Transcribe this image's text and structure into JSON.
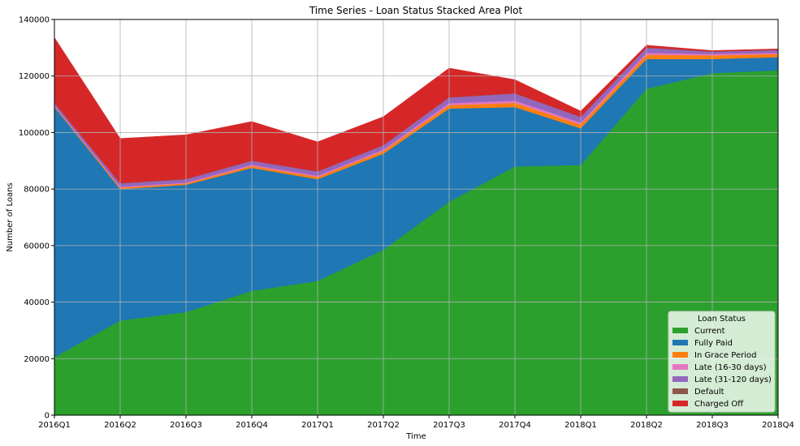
{
  "chart_data": {
    "type": "area",
    "stacked": true,
    "title": "Time Series - Loan Status Stacked Area Plot",
    "xlabel": "Time",
    "ylabel": "Number of Loans",
    "ylim": [
      0,
      140000
    ],
    "yticks": [
      0,
      20000,
      40000,
      60000,
      80000,
      100000,
      120000,
      140000
    ],
    "grid": true,
    "categories": [
      "2016Q1",
      "2016Q2",
      "2016Q3",
      "2016Q4",
      "2017Q1",
      "2017Q2",
      "2017Q3",
      "2017Q4",
      "2018Q1",
      "2018Q2",
      "2018Q3",
      "2018Q4"
    ],
    "legend": {
      "title": "Loan Status",
      "position": "bottom-right"
    },
    "series": [
      {
        "name": "Current",
        "color": "#2ca02c",
        "values": [
          20500,
          33500,
          36500,
          44000,
          47500,
          58500,
          75500,
          88000,
          88500,
          115500,
          121000,
          122000
        ]
      },
      {
        "name": "Fully Paid",
        "color": "#1f77b4",
        "values": [
          88500,
          46500,
          45000,
          43500,
          36000,
          34000,
          33000,
          21000,
          13000,
          10500,
          5000,
          4700
        ]
      },
      {
        "name": "In Grace Period",
        "color": "#ff7f0e",
        "values": [
          300,
          500,
          500,
          700,
          800,
          1000,
          1200,
          1500,
          1300,
          1500,
          1300,
          1100
        ]
      },
      {
        "name": "Late (16-30 days)",
        "color": "#e377c2",
        "values": [
          200,
          300,
          300,
          400,
          400,
          500,
          700,
          800,
          700,
          700,
          500,
          400
        ]
      },
      {
        "name": "Late (31-120 days)",
        "color": "#9467bd",
        "values": [
          1000,
          1200,
          1200,
          1400,
          1500,
          1500,
          2000,
          2500,
          2000,
          1800,
          800,
          1000
        ]
      },
      {
        "name": "Default",
        "color": "#8c564b",
        "values": [
          100,
          100,
          100,
          100,
          100,
          100,
          100,
          100,
          100,
          100,
          100,
          100
        ]
      },
      {
        "name": "Charged Off",
        "color": "#d62728",
        "values": [
          23000,
          15800,
          15600,
          13800,
          10400,
          10000,
          10300,
          4800,
          2000,
          800,
          300,
          300
        ]
      }
    ]
  }
}
